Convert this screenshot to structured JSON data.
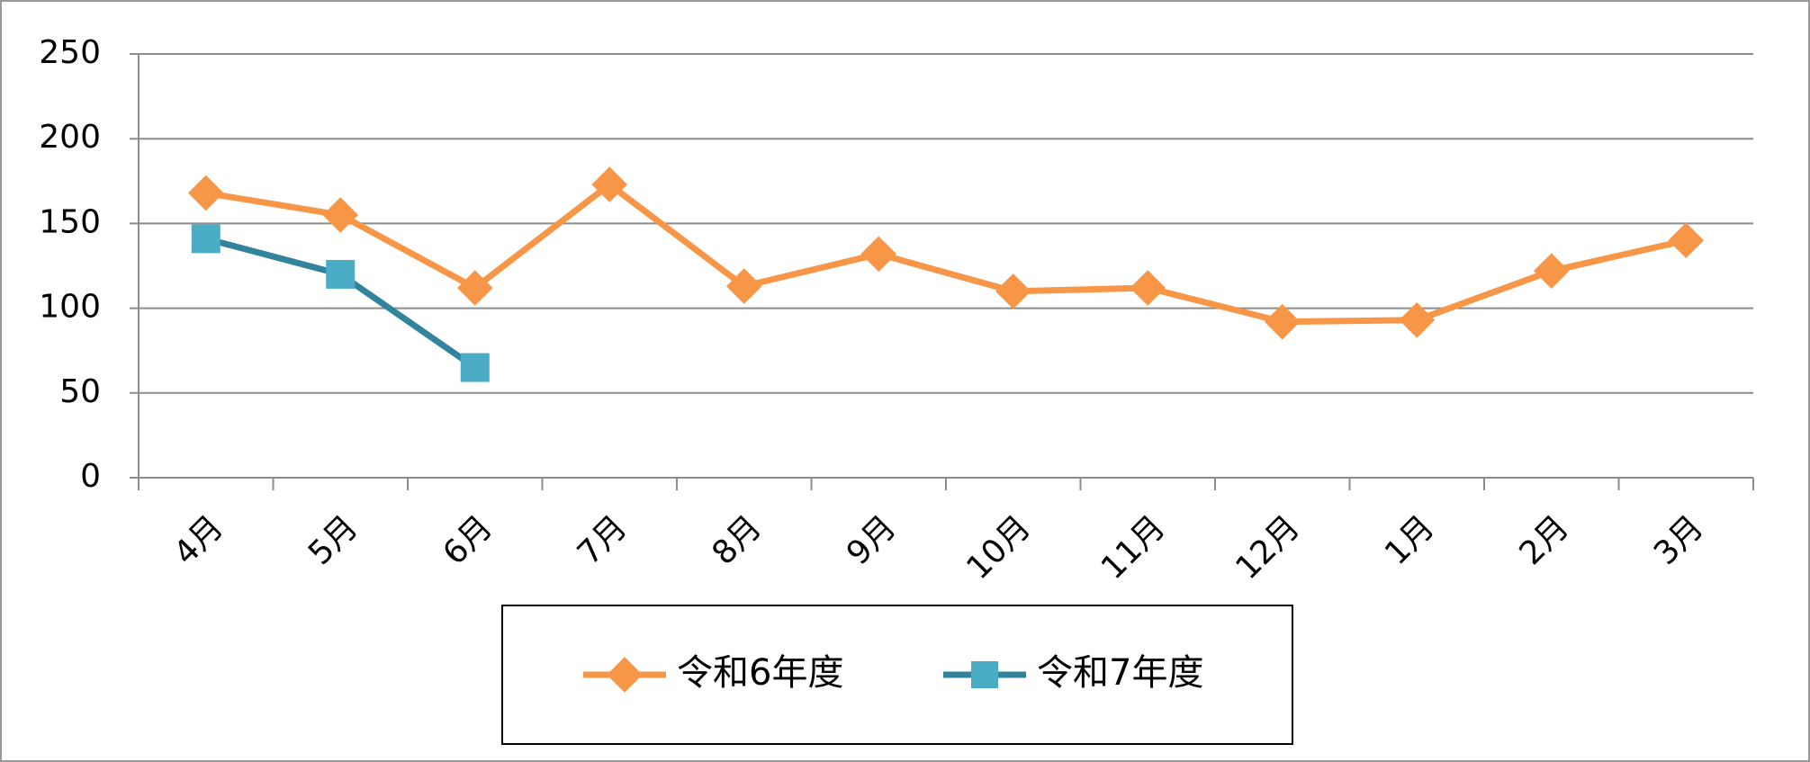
{
  "chart_data": {
    "type": "line",
    "categories": [
      "4月",
      "5月",
      "6月",
      "7月",
      "8月",
      "9月",
      "10月",
      "11月",
      "12月",
      "1月",
      "2月",
      "3月"
    ],
    "series": [
      {
        "name": "令和6年度",
        "color": "#F79646",
        "marker": "diamond",
        "values": [
          168,
          155,
          112,
          173,
          113,
          132,
          110,
          112,
          92,
          93,
          122,
          140
        ]
      },
      {
        "name": "令和7年度",
        "color": "#31849B",
        "marker_color": "#4BACC6",
        "marker": "square",
        "values": [
          141,
          120,
          65,
          null,
          null,
          null,
          null,
          null,
          null,
          null,
          null,
          null
        ]
      }
    ],
    "ylim": [
      0,
      250
    ],
    "yticks": [
      0,
      50,
      100,
      150,
      200,
      250
    ],
    "grid": true,
    "legend": "bottom"
  }
}
